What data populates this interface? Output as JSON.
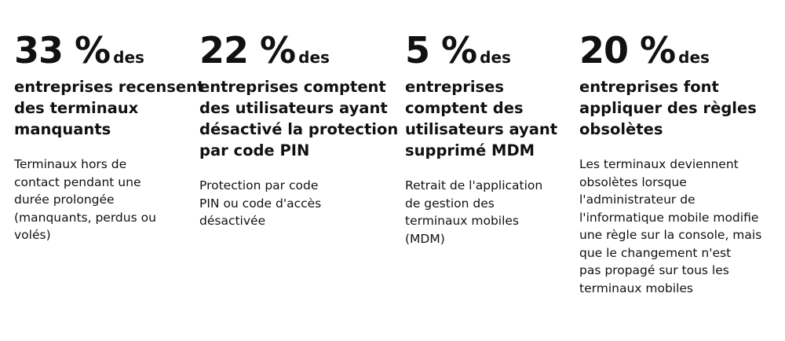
{
  "stats": [
    {
      "figure": "33 %",
      "suffix": "des",
      "headline": [
        "entreprises recensent",
        "des terminaux",
        "manquants"
      ],
      "description": [
        "Terminaux hors de",
        "contact pendant une",
        "durée prolongée",
        "(manquants, perdus ou",
        "volés)"
      ]
    },
    {
      "figure": "22 %",
      "suffix": "des",
      "headline": [
        "entreprises comptent",
        "des utilisateurs ayant",
        "désactivé la protection",
        "par code PIN"
      ],
      "description": [
        "Protection par code",
        "PIN ou code d'accès",
        "désactivée"
      ]
    },
    {
      "figure": "5 %",
      "suffix": "des",
      "headline": [
        "entreprises",
        "comptent des",
        "utilisateurs ayant",
        "supprimé MDM"
      ],
      "description": [
        "Retrait de l'application",
        "de gestion des",
        "terminaux mobiles",
        "(MDM)"
      ]
    },
    {
      "figure": "20 %",
      "suffix": "des",
      "headline": [
        "entreprises font",
        "appliquer des règles",
        "obsolètes"
      ],
      "description": [
        "Les terminaux deviennent",
        "obsolètes lorsque",
        "l'administrateur de",
        "l'informatique mobile modifie",
        "une règle sur la console, mais",
        "que le changement n'est",
        "pas propagé sur tous les",
        "terminaux mobiles"
      ]
    }
  ]
}
